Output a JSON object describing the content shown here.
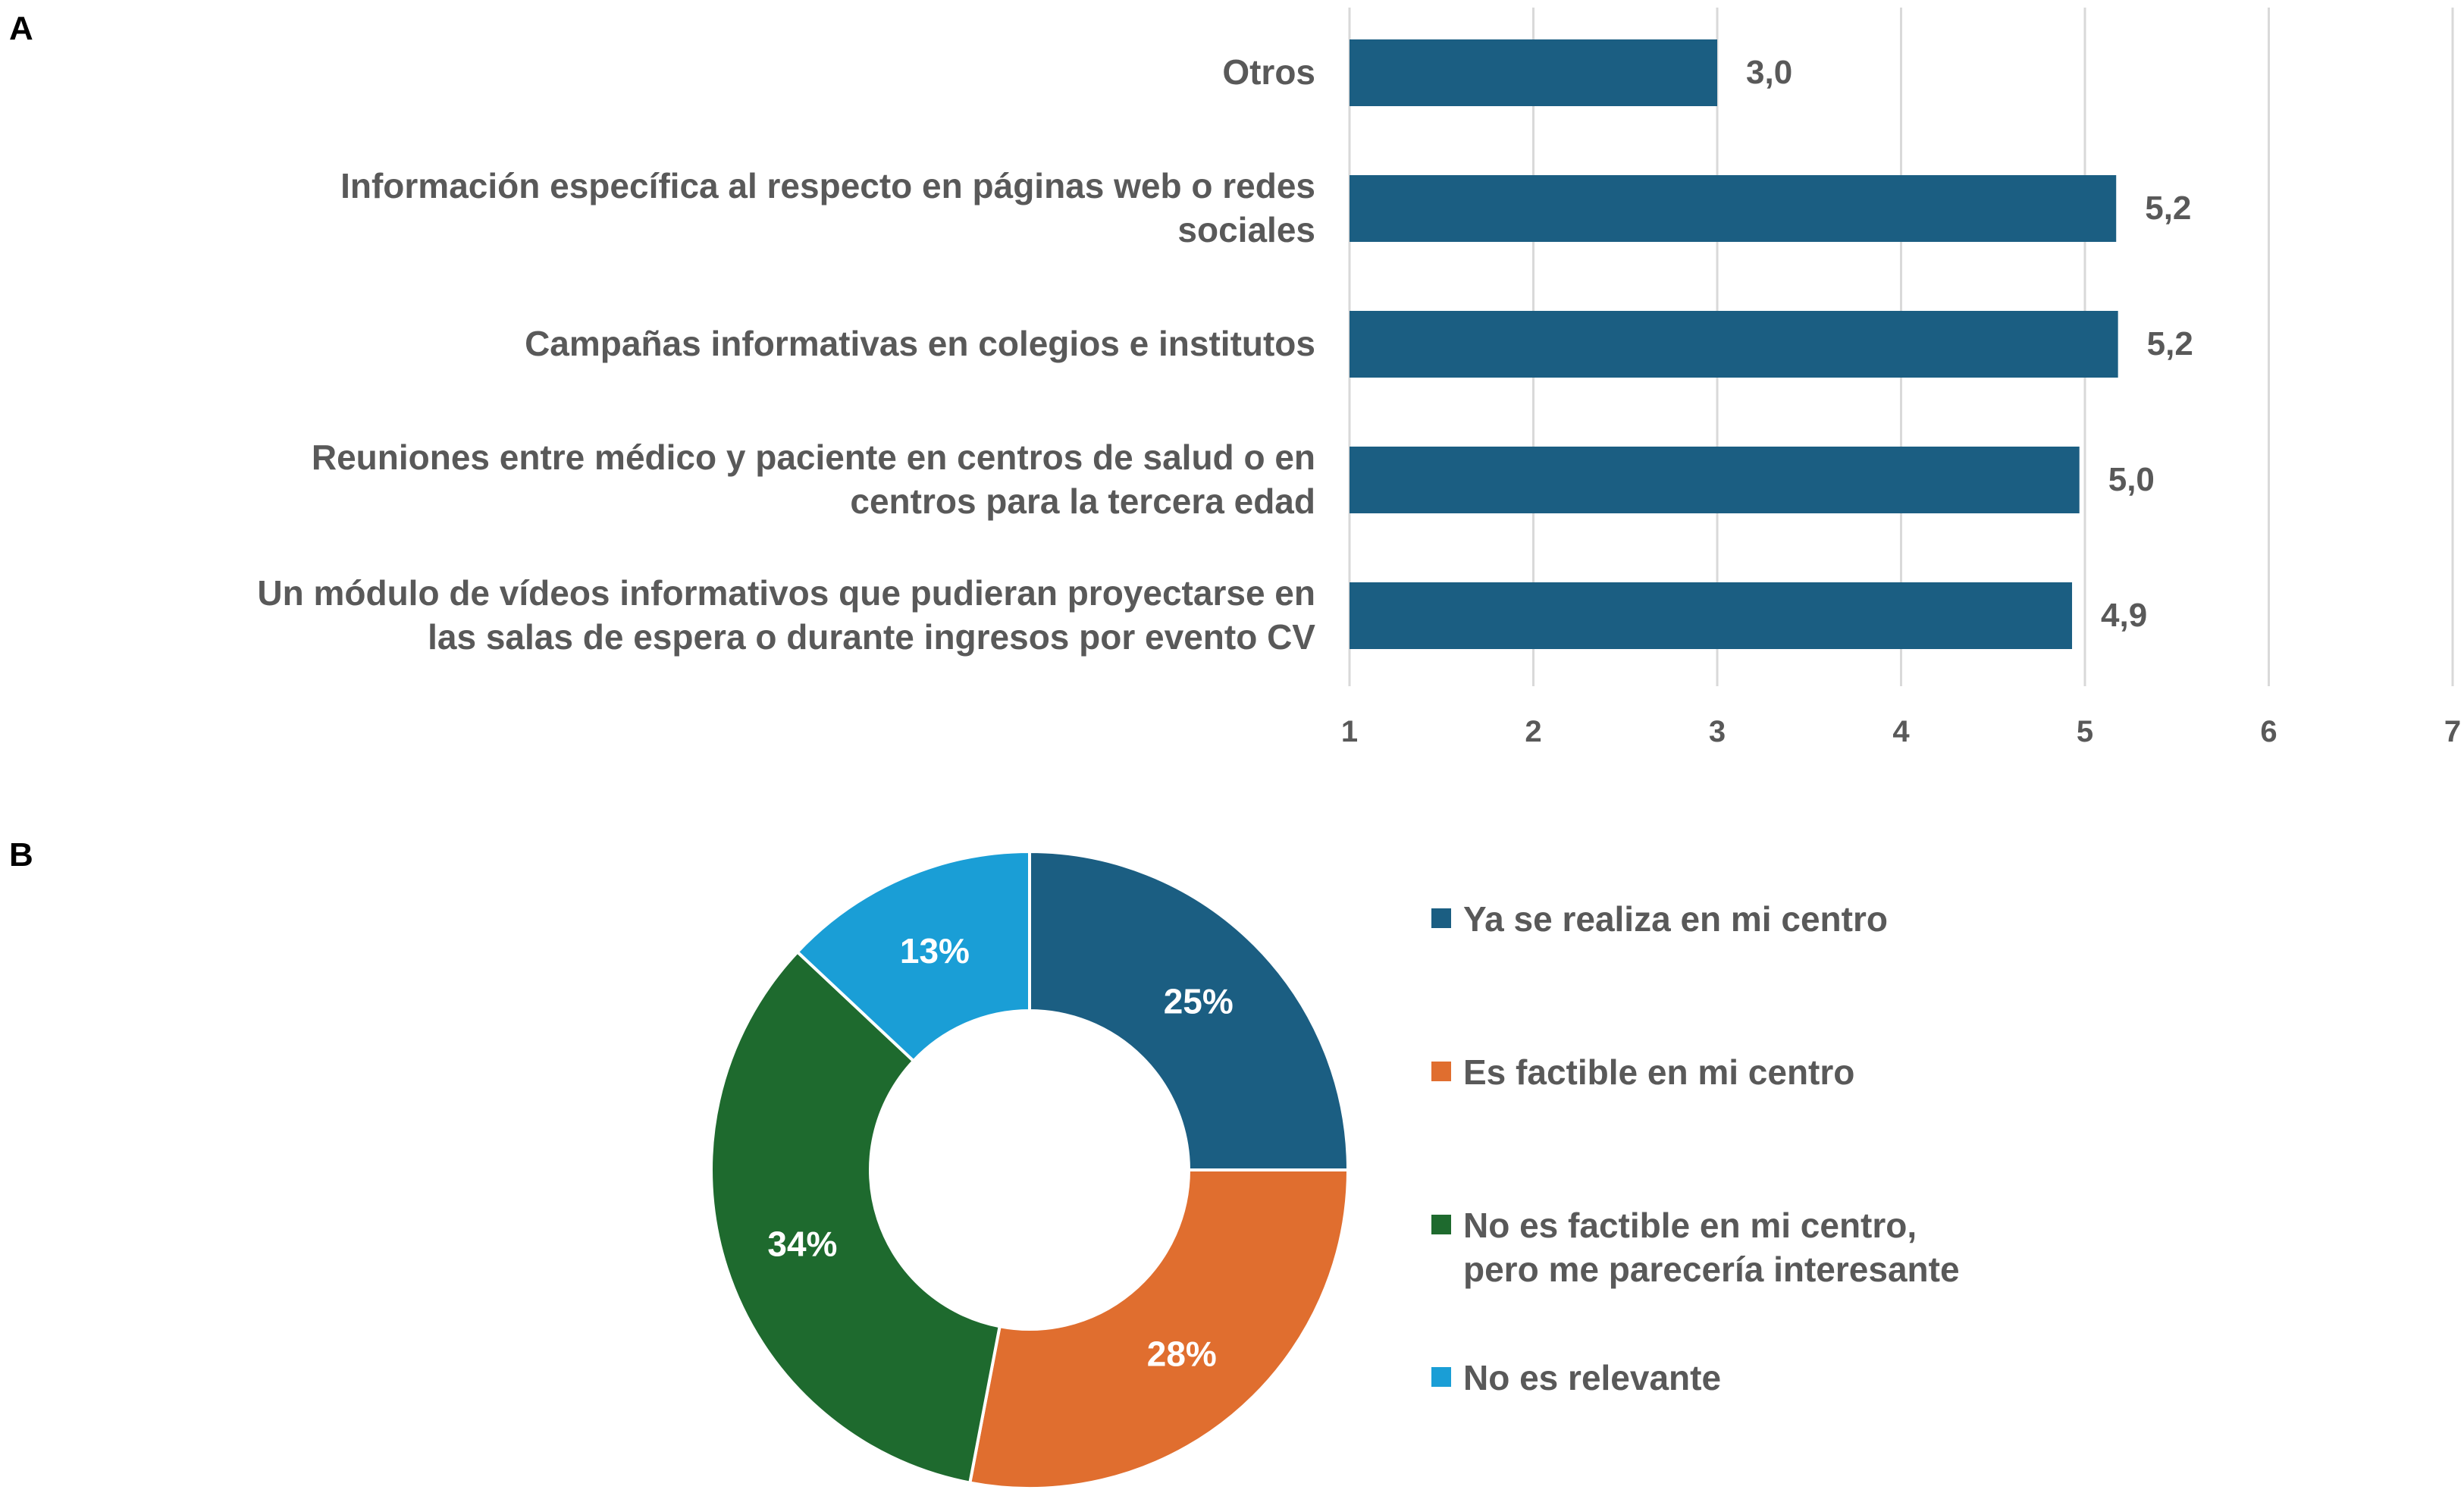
{
  "panels": {
    "a_label": "A",
    "b_label": "B"
  },
  "chart_data": [
    {
      "type": "bar",
      "orientation": "horizontal",
      "categories": [
        [
          "Otros"
        ],
        [
          "Información específica al respecto en páginas web o redes",
          "sociales"
        ],
        [
          "Campañas informativas en colegios e institutos"
        ],
        [
          "Reuniones entre médico y paciente en centros de salud o en",
          "centros para la tercera edad"
        ],
        [
          "Un módulo de vídeos informativos que pudieran proyectarse en",
          "las salas de espera o durante ingresos por evento CV"
        ]
      ],
      "values": [
        3.0,
        5.17,
        5.18,
        4.97,
        4.93
      ],
      "data_labels": [
        "3,0",
        "5,2",
        "5,2",
        "5,0",
        "4,9"
      ],
      "xlim": [
        1,
        7
      ],
      "xticks": [
        "1",
        "2",
        "3",
        "4",
        "5",
        "6",
        "7"
      ],
      "grid": true,
      "color": "#1b5e82",
      "title": "",
      "xlabel": "",
      "ylabel": ""
    },
    {
      "type": "pie",
      "donut": true,
      "slices": [
        {
          "label": "Ya se realiza en mi centro",
          "value": 25,
          "text": "25%",
          "color": "#1b5e82"
        },
        {
          "label": "Es factible en mi centro",
          "value": 28,
          "text": "28%",
          "color": "#e06e2f"
        },
        {
          "label": [
            "No es factible en mi centro,",
            "pero me parecería interesante"
          ],
          "value": 34,
          "text": "34%",
          "color": "#1e6a2e"
        },
        {
          "label": "No es relevante",
          "value": 13,
          "text": "13%",
          "color": "#1a9ed6"
        }
      ],
      "legend_position": "right",
      "title": ""
    }
  ]
}
